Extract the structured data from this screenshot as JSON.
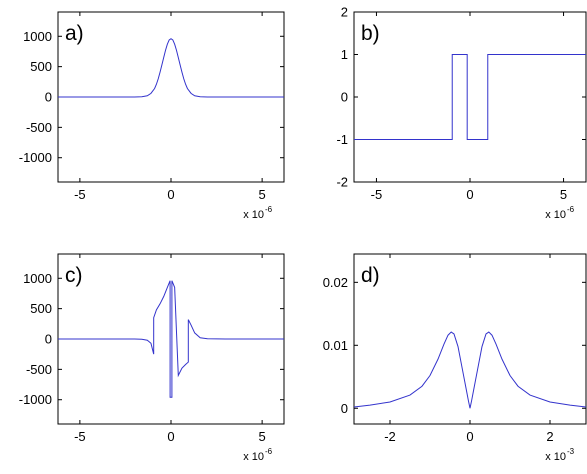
{
  "chart_data": [
    {
      "type": "line",
      "panel_label": "a)",
      "x_multiplier": "x 10",
      "x_multiplier_exp": "-6",
      "xlim": [
        -6.2,
        6.2
      ],
      "ylim": [
        -1400,
        1400
      ],
      "xticks": [
        -5,
        0,
        5
      ],
      "yticks": [
        1000,
        500,
        0,
        -500,
        -1000
      ],
      "series": [
        {
          "color": "#3333cc",
          "x": [
            -6.2,
            -3,
            -2,
            -1.6,
            -1.3,
            -1.1,
            -0.9,
            -0.8,
            -0.7,
            -0.6,
            -0.5,
            -0.4,
            -0.3,
            -0.2,
            -0.1,
            0,
            0.1,
            0.2,
            0.3,
            0.4,
            0.5,
            0.6,
            0.7,
            0.8,
            0.9,
            1.1,
            1.3,
            1.6,
            2,
            3,
            6.2
          ],
          "y": [
            0,
            0,
            0,
            5,
            20,
            60,
            140,
            210,
            300,
            410,
            530,
            650,
            770,
            870,
            940,
            960,
            940,
            870,
            770,
            650,
            530,
            410,
            300,
            210,
            140,
            60,
            20,
            5,
            0,
            0,
            0
          ]
        }
      ]
    },
    {
      "type": "line",
      "panel_label": "b)",
      "x_multiplier": "x 10",
      "x_multiplier_exp": "-6",
      "xlim": [
        -6.2,
        6.2
      ],
      "ylim": [
        -2,
        2
      ],
      "xticks": [
        -5,
        0,
        5
      ],
      "yticks": [
        2,
        1,
        0,
        -1,
        -2
      ],
      "series": [
        {
          "color": "#3333cc",
          "x": [
            -6.2,
            -0.95,
            -0.95,
            -0.15,
            -0.15,
            0.15,
            0.15,
            0.95,
            0.95,
            6.2
          ],
          "y": [
            -1,
            -1,
            1,
            1,
            -1,
            -1,
            -1,
            -1,
            1,
            1
          ]
        }
      ]
    },
    {
      "type": "line",
      "panel_label": "c)",
      "x_multiplier": "x 10",
      "x_multiplier_exp": "-6",
      "xlim": [
        -6.2,
        6.2
      ],
      "ylim": [
        -1400,
        1400
      ],
      "xticks": [
        -5,
        0,
        5
      ],
      "yticks": [
        1000,
        500,
        0,
        -500,
        -1000
      ],
      "series": [
        {
          "color": "#3333cc",
          "x": [
            -6.2,
            -3,
            -2,
            -1.6,
            -1.3,
            -1.1,
            -0.95,
            -0.95,
            -0.8,
            -0.6,
            -0.4,
            -0.2,
            -0.05,
            -0.05,
            0.05,
            0.05,
            0.2,
            0.4,
            0.6,
            0.8,
            0.95,
            0.95,
            1.1,
            1.3,
            1.6,
            2,
            3,
            6.2
          ],
          "y": [
            0,
            0,
            0,
            -5,
            -20,
            -70,
            -250,
            350,
            480,
            580,
            700,
            850,
            960,
            -960,
            -960,
            960,
            850,
            -600,
            -480,
            -420,
            -380,
            320,
            230,
            100,
            20,
            5,
            0,
            0
          ]
        }
      ]
    },
    {
      "type": "line",
      "panel_label": "d)",
      "x_multiplier": "x 10",
      "x_multiplier_exp": "-3",
      "xlim": [
        -2.9,
        2.9
      ],
      "ylim": [
        -0.0025,
        0.0245
      ],
      "xticks": [
        -2,
        0,
        2
      ],
      "yticks": [
        0.02,
        0.01,
        0
      ],
      "series": [
        {
          "color": "#3333cc",
          "x": [
            -2.9,
            -2.5,
            -2,
            -1.5,
            -1.2,
            -1,
            -0.8,
            -0.65,
            -0.55,
            -0.47,
            -0.4,
            -0.3,
            -0.2,
            -0.1,
            -0.04,
            0,
            0.04,
            0.1,
            0.2,
            0.3,
            0.4,
            0.47,
            0.55,
            0.65,
            0.8,
            1,
            1.2,
            1.5,
            2,
            2.5,
            2.9
          ],
          "y": [
            0.0002,
            0.0005,
            0.001,
            0.0021,
            0.0035,
            0.0052,
            0.0078,
            0.0102,
            0.0116,
            0.0121,
            0.0118,
            0.0098,
            0.0065,
            0.0032,
            0.0012,
            0,
            0.0012,
            0.0032,
            0.0065,
            0.0098,
            0.0118,
            0.0121,
            0.0116,
            0.0102,
            0.0078,
            0.0052,
            0.0035,
            0.0021,
            0.001,
            0.0005,
            0.0002
          ]
        }
      ]
    }
  ]
}
